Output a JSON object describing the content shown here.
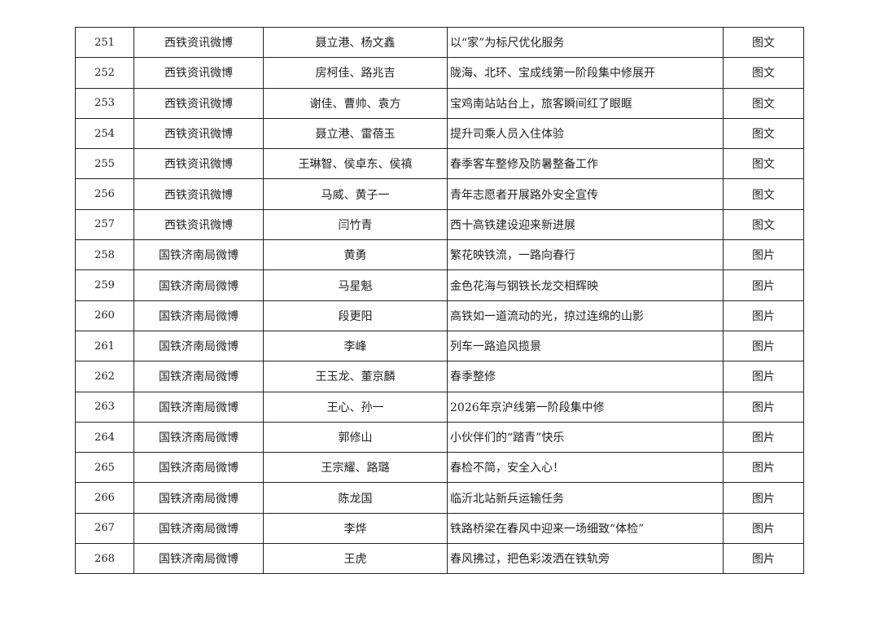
{
  "rows": [
    {
      "no": "251",
      "account": "西铁资讯微博",
      "authors": "聂立港、杨文鑫",
      "title": "以“家”为标尺优化服务",
      "type": "图文"
    },
    {
      "no": "252",
      "account": "西铁资讯微博",
      "authors": "房柯佳、路兆吉",
      "title": "陇海、北环、宝成线第一阶段集中修展开",
      "type": "图文"
    },
    {
      "no": "253",
      "account": "西铁资讯微博",
      "authors": "谢佳、曹帅、袁方",
      "title": "宝鸡南站站台上，旅客瞬间红了眼眶",
      "type": "图文"
    },
    {
      "no": "254",
      "account": "西铁资讯微博",
      "authors": "聂立港、雷蓓玉",
      "title": "提升司乘人员入住体验",
      "type": "图文"
    },
    {
      "no": "255",
      "account": "西铁资讯微博",
      "authors": "王琳智、侯卓东、侯禛",
      "title": "春季客车整修及防暑整备工作",
      "type": "图文"
    },
    {
      "no": "256",
      "account": "西铁资讯微博",
      "authors": "马威、黄子一",
      "title": "青年志愿者开展路外安全宣传",
      "type": "图文"
    },
    {
      "no": "257",
      "account": "西铁资讯微博",
      "authors": "闫竹青",
      "title": "西十高铁建设迎来新进展",
      "type": "图文"
    },
    {
      "no": "258",
      "account": "国铁济南局微博",
      "authors": "黄勇",
      "title": "繁花映铁流，一路向春行",
      "type": "图片"
    },
    {
      "no": "259",
      "account": "国铁济南局微博",
      "authors": "马星魁",
      "title": "金色花海与钢铁长龙交相辉映",
      "type": "图片"
    },
    {
      "no": "260",
      "account": "国铁济南局微博",
      "authors": "段更阳",
      "title": "高铁如一道流动的光，掠过连绵的山影",
      "type": "图片"
    },
    {
      "no": "261",
      "account": "国铁济南局微博",
      "authors": "李峰",
      "title": "列车一路追风揽景",
      "type": "图片"
    },
    {
      "no": "262",
      "account": "国铁济南局微博",
      "authors": "王玉龙、董京麟",
      "title": "春季整修",
      "type": "图片"
    },
    {
      "no": "263",
      "account": "国铁济南局微博",
      "authors": "王心、孙一",
      "title": "2026年京沪线第一阶段集中修",
      "type": "图片"
    },
    {
      "no": "264",
      "account": "国铁济南局微博",
      "authors": "郭修山",
      "title": "小伙伴们的“踏青”快乐",
      "type": "图片"
    },
    {
      "no": "265",
      "account": "国铁济南局微博",
      "authors": "王宗耀、路璐",
      "title": "春检不简，安全入心！",
      "type": "图片"
    },
    {
      "no": "266",
      "account": "国铁济南局微博",
      "authors": "陈龙国",
      "title": "临沂北站新兵运输任务",
      "type": "图片"
    },
    {
      "no": "267",
      "account": "国铁济南局微博",
      "authors": "李烨",
      "title": "铁路桥梁在春风中迎来一场细致“体检”",
      "type": "图片"
    },
    {
      "no": "268",
      "account": "国铁济南局微博",
      "authors": "王虎",
      "title": "春风拂过，把色彩泼洒在铁轨旁",
      "type": "图片"
    }
  ]
}
